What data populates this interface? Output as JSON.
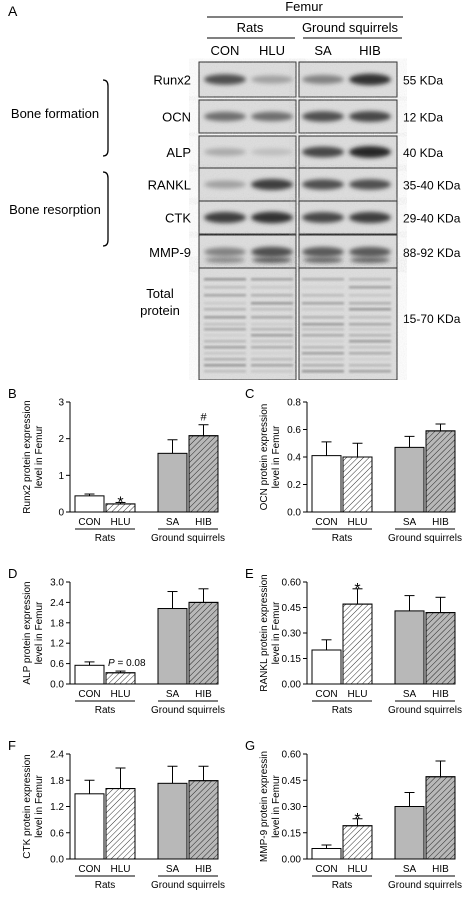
{
  "blot": {
    "panel_label": "A",
    "tissue": "Femur",
    "group_rats": "Rats",
    "group_squirrels": "Ground squirrels",
    "lanes": [
      "CON",
      "HLU",
      "SA",
      "HIB"
    ],
    "bone_formation_label": "Bone formation",
    "bone_resorption_label": "Bone resorption",
    "rows": [
      {
        "protein": "Runx2",
        "size": "55 KDa",
        "intensity": [
          0.75,
          0.35,
          0.5,
          0.9
        ]
      },
      {
        "protein": "OCN",
        "size": "12 KDa",
        "intensity": [
          0.6,
          0.6,
          0.75,
          0.8
        ]
      },
      {
        "protein": "ALP",
        "size": "40 KDa",
        "intensity": [
          0.3,
          0.2,
          0.8,
          0.95
        ]
      },
      {
        "protein": "RANKL",
        "size": "35-40 KDa",
        "intensity": [
          0.35,
          0.85,
          0.75,
          0.75
        ]
      },
      {
        "protein": "CTK",
        "size": "29-40 KDa",
        "intensity": [
          0.85,
          0.9,
          0.8,
          0.85
        ]
      },
      {
        "protein": "MMP-9",
        "size": "88-92 KDa",
        "intensity": [
          0.5,
          0.75,
          0.7,
          0.7
        ]
      },
      {
        "protein": "Total protein",
        "protein_lines": [
          "Total",
          "protein"
        ],
        "size": "15-70 KDa",
        "intensity": [
          0.35,
          0.35,
          0.3,
          0.3
        ]
      }
    ]
  },
  "colors": {
    "bar_rats": "#ffffff",
    "bar_squirrels": "#b8b8b8",
    "outline": "#000000"
  },
  "chart_data": [
    {
      "panel": "B",
      "type": "bar",
      "categories": [
        "CON",
        "HLU",
        "SA",
        "HIB"
      ],
      "values": [
        0.44,
        0.22,
        1.6,
        2.08
      ],
      "errors": [
        0.05,
        0.04,
        0.37,
        0.3
      ],
      "hatched": [
        false,
        true,
        false,
        true
      ],
      "fill_group": [
        "rats",
        "rats",
        "squirrels",
        "squirrels"
      ],
      "annotations": [
        "",
        "*",
        "",
        "#"
      ],
      "ylabel_lines": [
        "Runx2 protein expression",
        "level in Femur"
      ],
      "ylim": [
        0,
        3
      ],
      "yticks": [
        0,
        1,
        2,
        3
      ],
      "ytick_labels": [
        "0",
        "1",
        "2",
        "3"
      ],
      "group_labels": [
        "Rats",
        "Ground squirrels"
      ]
    },
    {
      "panel": "C",
      "type": "bar",
      "categories": [
        "CON",
        "HLU",
        "SA",
        "HIB"
      ],
      "values": [
        0.41,
        0.4,
        0.47,
        0.59
      ],
      "errors": [
        0.1,
        0.1,
        0.08,
        0.05
      ],
      "hatched": [
        false,
        true,
        false,
        true
      ],
      "fill_group": [
        "rats",
        "rats",
        "squirrels",
        "squirrels"
      ],
      "annotations": [
        "",
        "",
        "",
        ""
      ],
      "ylabel_lines": [
        "OCN protein expression",
        "level in Femur"
      ],
      "ylim": [
        0,
        0.8
      ],
      "yticks": [
        0,
        0.2,
        0.4,
        0.6,
        0.8
      ],
      "ytick_labels": [
        "0.0",
        "0.2",
        "0.4",
        "0.6",
        "0.8"
      ],
      "group_labels": [
        "Rats",
        "Ground squirrels"
      ]
    },
    {
      "panel": "D",
      "type": "bar",
      "categories": [
        "CON",
        "HLU",
        "SA",
        "HIB"
      ],
      "values": [
        0.55,
        0.33,
        2.22,
        2.4
      ],
      "errors": [
        0.1,
        0.05,
        0.5,
        0.4
      ],
      "hatched": [
        false,
        true,
        false,
        true
      ],
      "fill_group": [
        "rats",
        "rats",
        "squirrels",
        "squirrels"
      ],
      "annotations": [
        "",
        "",
        "",
        ""
      ],
      "p_note": {
        "italic": "P",
        "rest": " = 0.08"
      },
      "ylabel_lines": [
        "ALP protein expression",
        "level in Femur"
      ],
      "ylim": [
        0,
        3
      ],
      "yticks": [
        0,
        0.6,
        1.2,
        1.8,
        2.4,
        3
      ],
      "ytick_labels": [
        "0.0",
        "0.6",
        "1.2",
        "1.8",
        "2.4",
        "3.0"
      ],
      "group_labels": [
        "Rats",
        "Ground squirrels"
      ]
    },
    {
      "panel": "E",
      "type": "bar",
      "categories": [
        "CON",
        "HLU",
        "SA",
        "HIB"
      ],
      "values": [
        0.2,
        0.47,
        0.43,
        0.42
      ],
      "errors": [
        0.06,
        0.09,
        0.09,
        0.09
      ],
      "hatched": [
        false,
        true,
        false,
        true
      ],
      "fill_group": [
        "rats",
        "rats",
        "squirrels",
        "squirrels"
      ],
      "annotations": [
        "",
        "*",
        "",
        ""
      ],
      "ylabel_lines": [
        "RANKL protein expression",
        "level in Femur"
      ],
      "ylim": [
        0,
        0.6
      ],
      "yticks": [
        0,
        0.15,
        0.3,
        0.45,
        0.6
      ],
      "ytick_labels": [
        "0.00",
        "0.15",
        "0.30",
        "0.45",
        "0.60"
      ],
      "group_labels": [
        "Rats",
        "Ground squirrels"
      ]
    },
    {
      "panel": "F",
      "type": "bar",
      "categories": [
        "CON",
        "HLU",
        "SA",
        "HIB"
      ],
      "values": [
        1.49,
        1.61,
        1.73,
        1.79
      ],
      "errors": [
        0.31,
        0.47,
        0.39,
        0.33
      ],
      "hatched": [
        false,
        true,
        false,
        true
      ],
      "fill_group": [
        "rats",
        "rats",
        "squirrels",
        "squirrels"
      ],
      "annotations": [
        "",
        "",
        "",
        ""
      ],
      "ylabel_lines": [
        "CTK protein expression",
        "level in Femur"
      ],
      "ylim": [
        0,
        2.4
      ],
      "yticks": [
        0,
        0.6,
        1.2,
        1.8,
        2.4
      ],
      "ytick_labels": [
        "0.0",
        "0.6",
        "1.2",
        "1.8",
        "2.4"
      ],
      "group_labels": [
        "Rats",
        "Ground squirrels"
      ]
    },
    {
      "panel": "G",
      "type": "bar",
      "categories": [
        "CON",
        "HLU",
        "SA",
        "HIB"
      ],
      "values": [
        0.06,
        0.19,
        0.3,
        0.47
      ],
      "errors": [
        0.02,
        0.04,
        0.08,
        0.09
      ],
      "hatched": [
        false,
        true,
        false,
        true
      ],
      "fill_group": [
        "rats",
        "rats",
        "squirrels",
        "squirrels"
      ],
      "annotations": [
        "",
        "*",
        "",
        ""
      ],
      "ylabel_lines": [
        "MMP-9 protein expressin",
        "level in Femur"
      ],
      "ylim": [
        0,
        0.6
      ],
      "yticks": [
        0,
        0.15,
        0.3,
        0.45,
        0.6
      ],
      "ytick_labels": [
        "0.00",
        "0.15",
        "0.30",
        "0.45",
        "0.60"
      ],
      "group_labels": [
        "Rats",
        "Ground squirrels"
      ]
    }
  ]
}
